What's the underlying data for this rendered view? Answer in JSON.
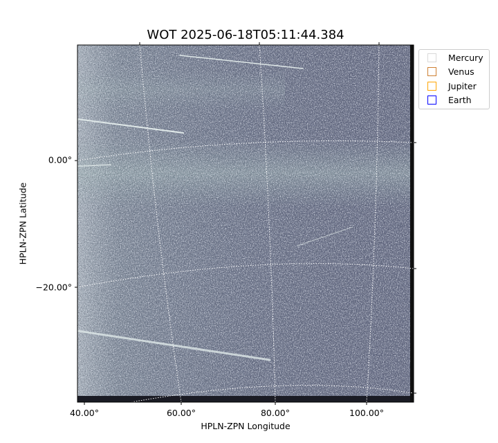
{
  "chart_data": {
    "type": "image",
    "title": "WOT 2025-06-18T05:11:44.384",
    "xlabel": "HPLN-ZPN Longitude",
    "ylabel": "HPLN-ZPN Latitude",
    "xticks": [
      "40.00°",
      "60.00°",
      "80.00°",
      "100.00°"
    ],
    "yticks": [
      "0.00°",
      "−20.00°"
    ],
    "grid": "dotted white coordinate grid",
    "colormap": "bone-like grayscale",
    "legend_position": "outside-top-right",
    "legend": [
      {
        "name": "Mercury",
        "color": "#d9d9d9"
      },
      {
        "name": "Venus",
        "color": "#cd7f32"
      },
      {
        "name": "Jupiter",
        "color": "#ffa500"
      },
      {
        "name": "Earth",
        "color": "#0000ff"
      }
    ]
  }
}
